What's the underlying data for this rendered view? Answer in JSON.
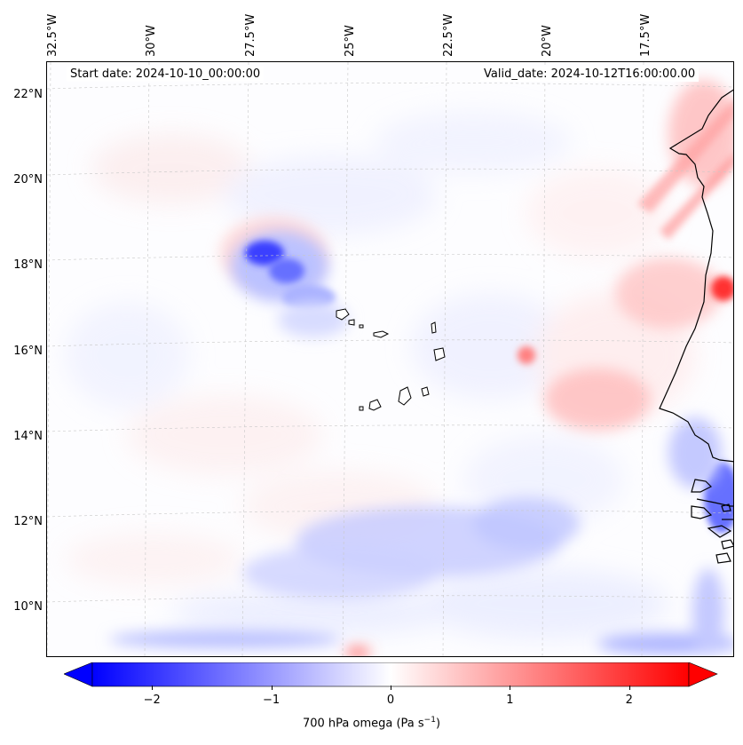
{
  "map": {
    "longitude_labels": [
      "32.5°W",
      "30°W",
      "27.5°W",
      "25°W",
      "22.5°W",
      "20°W",
      "17.5°W"
    ],
    "latitude_labels": [
      "22°N",
      "20°N",
      "18°N",
      "16°N",
      "14°N",
      "12°N",
      "10°N"
    ],
    "start_date": "Start date: 2024-10-10_00:00:00",
    "valid_date": "Valid_date: 2024-10-12T16:00:00.00"
  },
  "colorbar": {
    "tick_labels": [
      "−2",
      "−1",
      "0",
      "1",
      "2"
    ],
    "tick_values": [
      -2,
      -1,
      0,
      1,
      2
    ],
    "range": [
      -2.5,
      2.5
    ],
    "title": "700 hPa omega (Pa s",
    "title_exponent": "−1",
    "title_close": ")",
    "colors": {
      "negative": "#0000ff",
      "zero": "#ffffff",
      "positive": "#ff0000"
    }
  }
}
